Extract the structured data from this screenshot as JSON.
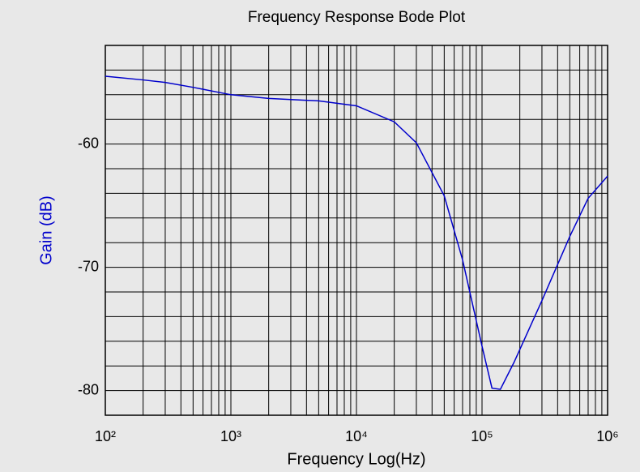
{
  "chart_data": {
    "type": "line",
    "title": "Frequency Response Bode Plot",
    "x_label": "Frequency Log(Hz)",
    "y_label": "Gain (dB)",
    "x": [
      100,
      200,
      300,
      500,
      1000,
      2000,
      5000,
      10000,
      20000,
      30000,
      50000,
      70000,
      100000,
      120000,
      140000,
      180000,
      300000,
      500000,
      700000,
      1000000
    ],
    "series": [
      {
        "name": "Gain (dB)",
        "color": "#0000cc",
        "values": [
          -54.5,
          -54.8,
          -55.0,
          -55.4,
          -56.0,
          -56.3,
          -56.5,
          -56.9,
          -58.2,
          -59.9,
          -64.2,
          -69.4,
          -76.4,
          -79.8,
          -79.9,
          -77.7,
          -72.7,
          -67.5,
          -64.4,
          -62.6
        ]
      }
    ],
    "xscale": "log",
    "xlim": [
      100,
      1000000
    ],
    "xticks": [
      {
        "value": 100,
        "label": "10²"
      },
      {
        "value": 1000,
        "label": "10³"
      },
      {
        "value": 10000,
        "label": "10⁴"
      },
      {
        "value": 100000,
        "label": "10⁵"
      },
      {
        "value": 1000000,
        "label": "10⁶"
      }
    ],
    "xgrid": [
      200,
      300,
      400,
      500,
      600,
      700,
      800,
      900,
      2000,
      3000,
      4000,
      5000,
      6000,
      7000,
      8000,
      9000,
      20000,
      30000,
      40000,
      50000,
      60000,
      70000,
      80000,
      90000,
      200000,
      300000,
      400000,
      500000,
      600000,
      700000,
      800000,
      900000
    ],
    "ylim": [
      -82,
      -52
    ],
    "yticks": [
      -60,
      -70,
      -80
    ],
    "ygrid": [
      -82,
      -78,
      -76,
      -74,
      -72,
      -68,
      -66,
      -64,
      -62,
      -58,
      -56,
      -54,
      -52
    ],
    "grid": true
  }
}
